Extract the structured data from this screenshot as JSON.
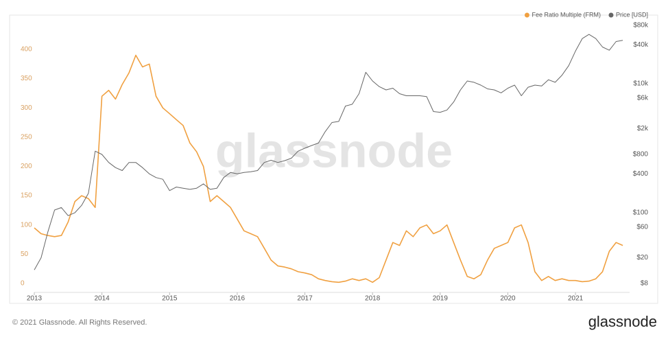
{
  "chart_data": {
    "type": "line",
    "watermark": "glassnode",
    "footer": "© 2021 Glassnode. All Rights Reserved.",
    "logo": "glassnode",
    "x": [
      2013.0,
      2013.1,
      2013.2,
      2013.3,
      2013.4,
      2013.5,
      2013.6,
      2013.7,
      2013.8,
      2013.9,
      2014.0,
      2014.1,
      2014.2,
      2014.3,
      2014.4,
      2014.5,
      2014.6,
      2014.7,
      2014.8,
      2014.9,
      2015.0,
      2015.1,
      2015.2,
      2015.3,
      2015.4,
      2015.5,
      2015.6,
      2015.7,
      2015.8,
      2015.9,
      2016.0,
      2016.1,
      2016.2,
      2016.3,
      2016.4,
      2016.5,
      2016.6,
      2016.7,
      2016.8,
      2016.9,
      2017.0,
      2017.1,
      2017.2,
      2017.3,
      2017.4,
      2017.5,
      2017.6,
      2017.7,
      2017.8,
      2017.9,
      2018.0,
      2018.1,
      2018.2,
      2018.3,
      2018.4,
      2018.5,
      2018.6,
      2018.7,
      2018.8,
      2018.9,
      2019.0,
      2019.1,
      2019.2,
      2019.3,
      2019.4,
      2019.5,
      2019.6,
      2019.7,
      2019.8,
      2019.9,
      2020.0,
      2020.1,
      2020.2,
      2020.3,
      2020.4,
      2020.5,
      2020.6,
      2020.7,
      2020.8,
      2020.9,
      2021.0,
      2021.1,
      2021.2,
      2021.3,
      2021.4,
      2021.5,
      2021.6,
      2021.7
    ],
    "xlim": [
      2013,
      2021.8
    ],
    "xticks": [
      2013,
      2014,
      2015,
      2016,
      2017,
      2018,
      2019,
      2020,
      2021
    ],
    "ylim": [
      0,
      441
    ],
    "yticks": [
      0,
      50,
      100,
      150,
      200,
      250,
      300,
      350,
      400
    ],
    "y2lim": [
      8,
      80000
    ],
    "y2log": true,
    "y2ticks": [
      {
        "value": 8,
        "label": "$8"
      },
      {
        "value": 20,
        "label": "$20"
      },
      {
        "value": 60,
        "label": "$60"
      },
      {
        "value": 100,
        "label": "$100"
      },
      {
        "value": 400,
        "label": "$400"
      },
      {
        "value": 800,
        "label": "$800"
      },
      {
        "value": 2000,
        "label": "$2k"
      },
      {
        "value": 6000,
        "label": "$6k"
      },
      {
        "value": 10000,
        "label": "$10k"
      },
      {
        "value": 40000,
        "label": "$40k"
      },
      {
        "value": 80000,
        "label": "$80k"
      }
    ],
    "legend": "top-right",
    "series": [
      {
        "name": "Fee Ratio Multiple (FRM)",
        "color": "#f0a040",
        "values": [
          95,
          85,
          82,
          80,
          82,
          105,
          140,
          150,
          145,
          130,
          320,
          330,
          315,
          340,
          360,
          390,
          370,
          375,
          320,
          300,
          290,
          280,
          270,
          240,
          225,
          200,
          140,
          150,
          140,
          130,
          110,
          90,
          85,
          80,
          60,
          40,
          30,
          28,
          25,
          20,
          18,
          15,
          8,
          5,
          3,
          2,
          4,
          8,
          5,
          8,
          2,
          10,
          40,
          70,
          65,
          90,
          80,
          95,
          100,
          85,
          90,
          100,
          70,
          40,
          12,
          8,
          15,
          40,
          60,
          65,
          70,
          95,
          100,
          70,
          20,
          5,
          12,
          5,
          8,
          5,
          5,
          3,
          4,
          8,
          20,
          55,
          70,
          65
        ]
      },
      {
        "name": "Price [USD]",
        "color": "#666666",
        "axis": "y2",
        "values": [
          13,
          20,
          50,
          110,
          120,
          90,
          100,
          130,
          200,
          900,
          800,
          600,
          500,
          450,
          600,
          600,
          500,
          400,
          350,
          330,
          220,
          250,
          240,
          230,
          240,
          280,
          230,
          240,
          350,
          420,
          400,
          420,
          430,
          450,
          600,
          650,
          600,
          640,
          700,
          900,
          1000,
          1100,
          1200,
          1800,
          2500,
          2600,
          4500,
          4800,
          7000,
          15000,
          11000,
          9000,
          8000,
          8500,
          7000,
          6500,
          6500,
          6500,
          6300,
          3700,
          3600,
          3900,
          5200,
          8000,
          11000,
          10500,
          9500,
          8300,
          8000,
          7200,
          8500,
          9500,
          6500,
          8800,
          9500,
          9200,
          11500,
          10500,
          13500,
          19000,
          32000,
          50000,
          58000,
          50000,
          37000,
          33000,
          45000,
          47000
        ]
      }
    ]
  }
}
